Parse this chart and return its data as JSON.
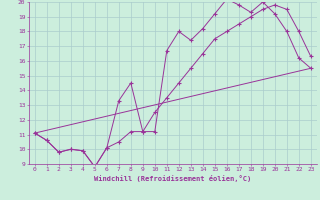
{
  "xlabel": "Windchill (Refroidissement éolien,°C)",
  "xlim": [
    -0.5,
    23.5
  ],
  "ylim": [
    9,
    20
  ],
  "xticks": [
    0,
    1,
    2,
    3,
    4,
    5,
    6,
    7,
    8,
    9,
    10,
    11,
    12,
    13,
    14,
    15,
    16,
    17,
    18,
    19,
    20,
    21,
    22,
    23
  ],
  "yticks": [
    9,
    10,
    11,
    12,
    13,
    14,
    15,
    16,
    17,
    18,
    19,
    20
  ],
  "bg_color": "#cceedd",
  "line_color": "#993399",
  "grid_color": "#aacccc",
  "line1_x": [
    0,
    1,
    2,
    3,
    4,
    5,
    6,
    7,
    8,
    9,
    10,
    11,
    12,
    13,
    14,
    15,
    16,
    17,
    18,
    19,
    20,
    21,
    22,
    23
  ],
  "line1_y": [
    11.1,
    10.6,
    9.8,
    10.0,
    9.9,
    8.8,
    10.1,
    10.5,
    11.2,
    11.2,
    12.5,
    13.5,
    14.5,
    15.5,
    16.5,
    17.5,
    18.0,
    18.5,
    19.0,
    19.5,
    19.8,
    19.5,
    18.0,
    16.3
  ],
  "line2_x": [
    0,
    1,
    2,
    3,
    4,
    5,
    6,
    7,
    8,
    9,
    10,
    11,
    12,
    13,
    14,
    15,
    16,
    17,
    18,
    19,
    20,
    21,
    22,
    23
  ],
  "line2_y": [
    11.1,
    10.6,
    9.8,
    10.0,
    9.9,
    8.8,
    10.1,
    13.3,
    14.5,
    11.2,
    11.2,
    16.7,
    18.0,
    17.4,
    18.2,
    19.2,
    20.2,
    19.8,
    19.3,
    20.0,
    19.2,
    18.0,
    16.2,
    15.5
  ],
  "line3_x": [
    0,
    23
  ],
  "line3_y": [
    11.1,
    15.5
  ]
}
